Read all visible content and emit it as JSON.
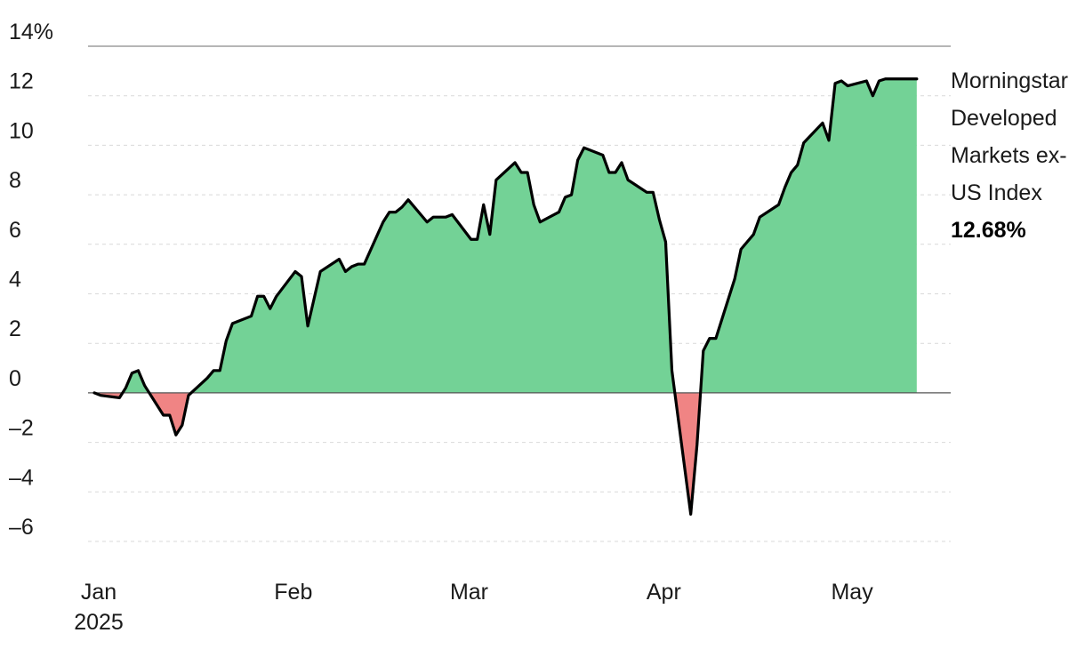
{
  "chart_data": {
    "type": "area",
    "series": [
      {
        "name": "Morningstar Developed Markets ex-US Index",
        "last_value_label": "12.68%",
        "x": [
          "2025-01-02",
          "2025-01-03",
          "2025-01-06",
          "2025-01-07",
          "2025-01-08",
          "2025-01-09",
          "2025-01-10",
          "2025-01-13",
          "2025-01-14",
          "2025-01-15",
          "2025-01-16",
          "2025-01-17",
          "2025-01-20",
          "2025-01-21",
          "2025-01-22",
          "2025-01-23",
          "2025-01-24",
          "2025-01-27",
          "2025-01-28",
          "2025-01-29",
          "2025-01-30",
          "2025-01-31",
          "2025-02-03",
          "2025-02-04",
          "2025-02-05",
          "2025-02-06",
          "2025-02-07",
          "2025-02-10",
          "2025-02-11",
          "2025-02-12",
          "2025-02-13",
          "2025-02-14",
          "2025-02-17",
          "2025-02-18",
          "2025-02-19",
          "2025-02-20",
          "2025-02-21",
          "2025-02-24",
          "2025-02-25",
          "2025-02-26",
          "2025-02-27",
          "2025-02-28",
          "2025-03-03",
          "2025-03-04",
          "2025-03-05",
          "2025-03-06",
          "2025-03-07",
          "2025-03-10",
          "2025-03-11",
          "2025-03-12",
          "2025-03-13",
          "2025-03-14",
          "2025-03-17",
          "2025-03-18",
          "2025-03-19",
          "2025-03-20",
          "2025-03-21",
          "2025-03-24",
          "2025-03-25",
          "2025-03-26",
          "2025-03-27",
          "2025-03-28",
          "2025-03-31",
          "2025-04-01",
          "2025-04-02",
          "2025-04-03",
          "2025-04-04",
          "2025-04-07",
          "2025-04-08",
          "2025-04-09",
          "2025-04-10",
          "2025-04-11",
          "2025-04-14",
          "2025-04-15",
          "2025-04-16",
          "2025-04-17",
          "2025-04-18",
          "2025-04-21",
          "2025-04-22",
          "2025-04-23",
          "2025-04-24",
          "2025-04-25",
          "2025-04-28",
          "2025-04-29",
          "2025-04-30",
          "2025-05-01",
          "2025-05-02",
          "2025-05-05",
          "2025-05-06",
          "2025-05-07",
          "2025-05-08",
          "2025-05-09",
          "2025-05-12",
          "2025-05-13"
        ],
        "values": [
          0.0,
          -0.1,
          -0.2,
          0.2,
          0.8,
          0.9,
          0.3,
          -0.9,
          -0.9,
          -1.7,
          -1.3,
          -0.1,
          0.6,
          0.9,
          0.9,
          2.1,
          2.8,
          3.1,
          3.9,
          3.9,
          3.4,
          3.9,
          4.9,
          4.7,
          2.7,
          3.8,
          4.9,
          5.4,
          4.9,
          5.1,
          5.2,
          5.2,
          6.9,
          7.3,
          7.3,
          7.5,
          7.8,
          6.9,
          7.1,
          7.1,
          7.1,
          7.2,
          6.2,
          6.2,
          7.6,
          6.4,
          8.6,
          9.3,
          8.9,
          8.9,
          7.6,
          6.9,
          7.3,
          7.9,
          8.0,
          9.4,
          9.9,
          9.6,
          8.9,
          8.9,
          9.3,
          8.6,
          8.1,
          8.1,
          7.0,
          6.1,
          0.9,
          -4.9,
          -2.1,
          1.7,
          2.2,
          2.2,
          4.6,
          5.8,
          6.1,
          6.4,
          7.1,
          7.6,
          8.3,
          8.9,
          9.2,
          10.1,
          10.9,
          10.2,
          12.5,
          12.6,
          12.4,
          12.6,
          12.0,
          12.6,
          12.68,
          12.68,
          12.68,
          12.68
        ]
      }
    ],
    "x_tick_labels": [
      {
        "date": "2025-01-01",
        "label": "Jan",
        "sub": "2025"
      },
      {
        "date": "2025-02-01",
        "label": "Feb",
        "sub": ""
      },
      {
        "date": "2025-03-01",
        "label": "Mar",
        "sub": ""
      },
      {
        "date": "2025-04-01",
        "label": "Apr",
        "sub": ""
      },
      {
        "date": "2025-05-01",
        "label": "May",
        "sub": ""
      }
    ],
    "y_ticks": [
      {
        "value": 14,
        "label": "14%"
      },
      {
        "value": 12,
        "label": "12"
      },
      {
        "value": 10,
        "label": "10"
      },
      {
        "value": 8,
        "label": "8"
      },
      {
        "value": 6,
        "label": "6"
      },
      {
        "value": 4,
        "label": "4"
      },
      {
        "value": 2,
        "label": "2"
      },
      {
        "value": 0,
        "label": "0"
      },
      {
        "value": -2,
        "label": "–2"
      },
      {
        "value": -4,
        "label": "–4"
      },
      {
        "value": -6,
        "label": "–6"
      }
    ],
    "ylim": [
      -6,
      14
    ],
    "xlim": [
      "2025-01-01",
      "2025-05-16"
    ],
    "grid": true,
    "legend_placement": "right",
    "colors": {
      "positive_fill": "#73d296",
      "negative_fill": "#f08484",
      "line": "#000000",
      "grid": "#d9d9d9",
      "axis": "#555555"
    }
  }
}
